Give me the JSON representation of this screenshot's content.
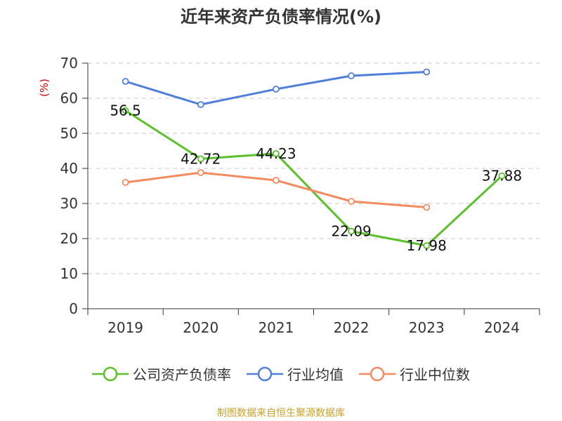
{
  "title": "近年来资产负债率情况(%)",
  "source": "制图数据来自恒生聚源数据库",
  "chart_data": {
    "type": "line",
    "title": "近年来资产负债率情况(%)",
    "ylabel": "(%)",
    "xlabel": "",
    "categories": [
      "2019",
      "2020",
      "2021",
      "2022",
      "2023",
      "2024"
    ],
    "ylim": [
      0,
      70
    ],
    "yticks": [
      0,
      10,
      20,
      30,
      40,
      50,
      60,
      70
    ],
    "grid": true,
    "legend_position": "bottom",
    "series": [
      {
        "name": "公司资产负债率",
        "color": "#5bc02b",
        "values": [
          56.5,
          42.72,
          44.23,
          22.09,
          17.98,
          37.88
        ],
        "labels": [
          "56.5",
          "42.72",
          "44.23",
          "22.09",
          "17.98",
          "37.88"
        ]
      },
      {
        "name": "行业均值",
        "color": "#4f7fd9",
        "values": [
          64.8,
          58.2,
          62.6,
          66.4,
          67.5,
          null
        ]
      },
      {
        "name": "行业中位数",
        "color": "#f48b5e",
        "values": [
          36.0,
          38.8,
          36.6,
          30.6,
          28.9,
          null
        ]
      }
    ]
  }
}
